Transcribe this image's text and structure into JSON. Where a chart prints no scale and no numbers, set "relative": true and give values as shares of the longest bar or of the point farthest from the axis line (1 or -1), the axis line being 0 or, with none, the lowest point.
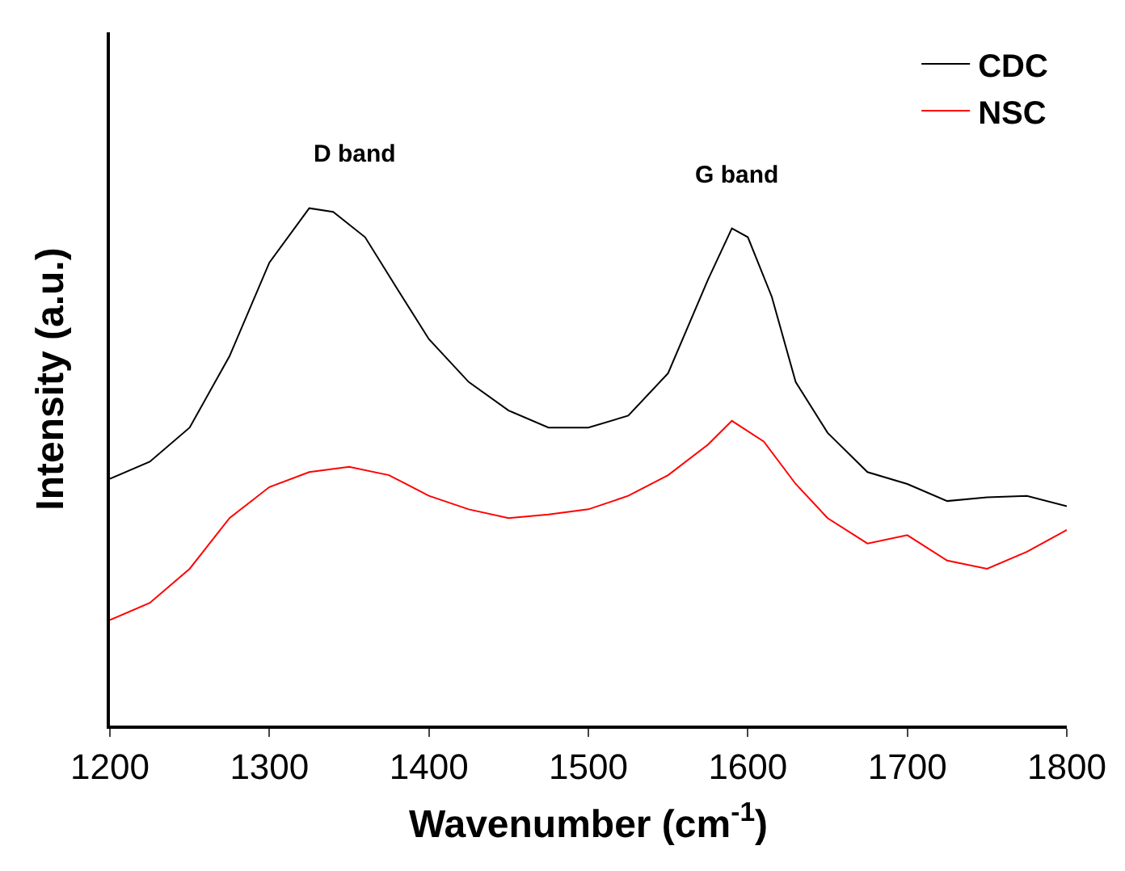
{
  "chart_data": {
    "type": "line",
    "xlabel": "Wavenumber (cm$^{-1}$)",
    "ylabel": "Intensity (a.u.)",
    "relative": true,
    "xlim": [
      1200,
      1800
    ],
    "xticks": [
      1200,
      1300,
      1400,
      1500,
      1600,
      1700,
      1800
    ],
    "legend": "top right",
    "marker": "none",
    "line_style": "solid",
    "annotations": [
      "D band",
      "G band"
    ],
    "series": [
      {
        "name": "CDC",
        "color": "#000000",
        "x": [
          1200,
          1225,
          1250,
          1275,
          1300,
          1325,
          1340,
          1360,
          1380,
          1400,
          1425,
          1450,
          1475,
          1500,
          1525,
          1550,
          1575,
          1590,
          1600,
          1615,
          1630,
          1650,
          1675,
          1700,
          1725,
          1750,
          1775,
          1800
        ],
        "values": [
          0.477,
          0.51,
          0.576,
          0.714,
          0.895,
          1,
          0.993,
          0.944,
          0.845,
          0.747,
          0.664,
          0.609,
          0.576,
          0.576,
          0.599,
          0.681,
          0.862,
          0.961,
          0.944,
          0.829,
          0.664,
          0.566,
          0.49,
          0.467,
          0.434,
          0.441,
          0.444,
          0.424
        ]
      },
      {
        "name": "NSC",
        "color": "#ff0000",
        "x": [
          1200,
          1225,
          1250,
          1275,
          1300,
          1325,
          1350,
          1375,
          1400,
          1425,
          1450,
          1475,
          1500,
          1525,
          1550,
          1575,
          1590,
          1610,
          1630,
          1650,
          1675,
          1700,
          1725,
          1750,
          1775,
          1800
        ],
        "values": [
          0.204,
          0.237,
          0.303,
          0.401,
          0.461,
          0.49,
          0.5,
          0.484,
          0.444,
          0.418,
          0.401,
          0.408,
          0.418,
          0.444,
          0.484,
          0.543,
          0.589,
          0.549,
          0.467,
          0.401,
          0.352,
          0.368,
          0.319,
          0.303,
          0.336,
          0.378
        ]
      }
    ]
  }
}
